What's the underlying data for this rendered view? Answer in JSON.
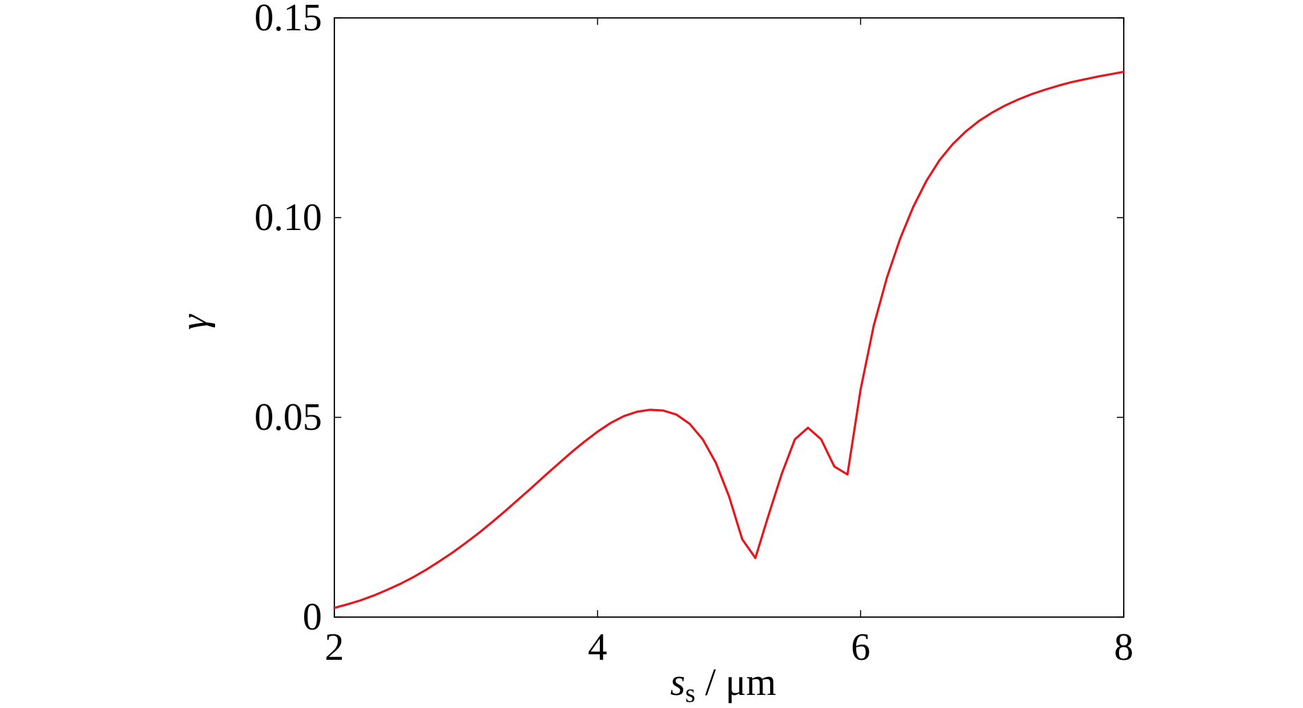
{
  "chart_data": {
    "type": "line",
    "title": "",
    "xlabel": {
      "symbol": "s",
      "subscript": "s",
      "unit": " / μm"
    },
    "ylabel": "γ",
    "xlim": [
      2,
      8
    ],
    "ylim": [
      0,
      0.15
    ],
    "xticks": [
      2,
      4,
      6,
      8
    ],
    "xtick_labels": [
      "2",
      "4",
      "6",
      "8"
    ],
    "yticks": [
      0,
      0.05,
      0.1,
      0.15
    ],
    "ytick_labels": [
      "0",
      "0.05",
      "0.10",
      "0.15"
    ],
    "grid": false,
    "series": [
      {
        "color": "#e8141b",
        "x": [
          2.0,
          2.1,
          2.2,
          2.3,
          2.4,
          2.5,
          2.6,
          2.7,
          2.8,
          2.9,
          3.0,
          3.1,
          3.2,
          3.3,
          3.4,
          3.5,
          3.6,
          3.7,
          3.8,
          3.9,
          4.0,
          4.1,
          4.2,
          4.3,
          4.4,
          4.5,
          4.6,
          4.7,
          4.8,
          4.9,
          5.0,
          5.1,
          5.2,
          5.3,
          5.4,
          5.5,
          5.6,
          5.7,
          5.8,
          5.9,
          6.0,
          6.1,
          6.2,
          6.3,
          6.4,
          6.5,
          6.6,
          6.7,
          6.8,
          6.9,
          7.0,
          7.1,
          7.2,
          7.3,
          7.4,
          7.5,
          7.6,
          7.7,
          7.8,
          7.9,
          8.0
        ],
        "y": [
          0.0023,
          0.0032,
          0.0042,
          0.0054,
          0.0068,
          0.0083,
          0.01,
          0.0119,
          0.014,
          0.0162,
          0.0186,
          0.0211,
          0.0238,
          0.0266,
          0.0295,
          0.0324,
          0.0354,
          0.0383,
          0.0412,
          0.0439,
          0.0464,
          0.0486,
          0.0503,
          0.0514,
          0.0519,
          0.0517,
          0.0507,
          0.0484,
          0.0445,
          0.0386,
          0.0302,
          0.0195,
          0.0148,
          0.0255,
          0.0358,
          0.0445,
          0.0474,
          0.0445,
          0.0377,
          0.0357,
          0.057,
          0.073,
          0.085,
          0.0947,
          0.1027,
          0.1092,
          0.1144,
          0.1184,
          0.1216,
          0.1242,
          0.1263,
          0.1281,
          0.1296,
          0.1309,
          0.132,
          0.133,
          0.1339,
          0.1346,
          0.1353,
          0.1359,
          0.1365
        ]
      }
    ]
  }
}
